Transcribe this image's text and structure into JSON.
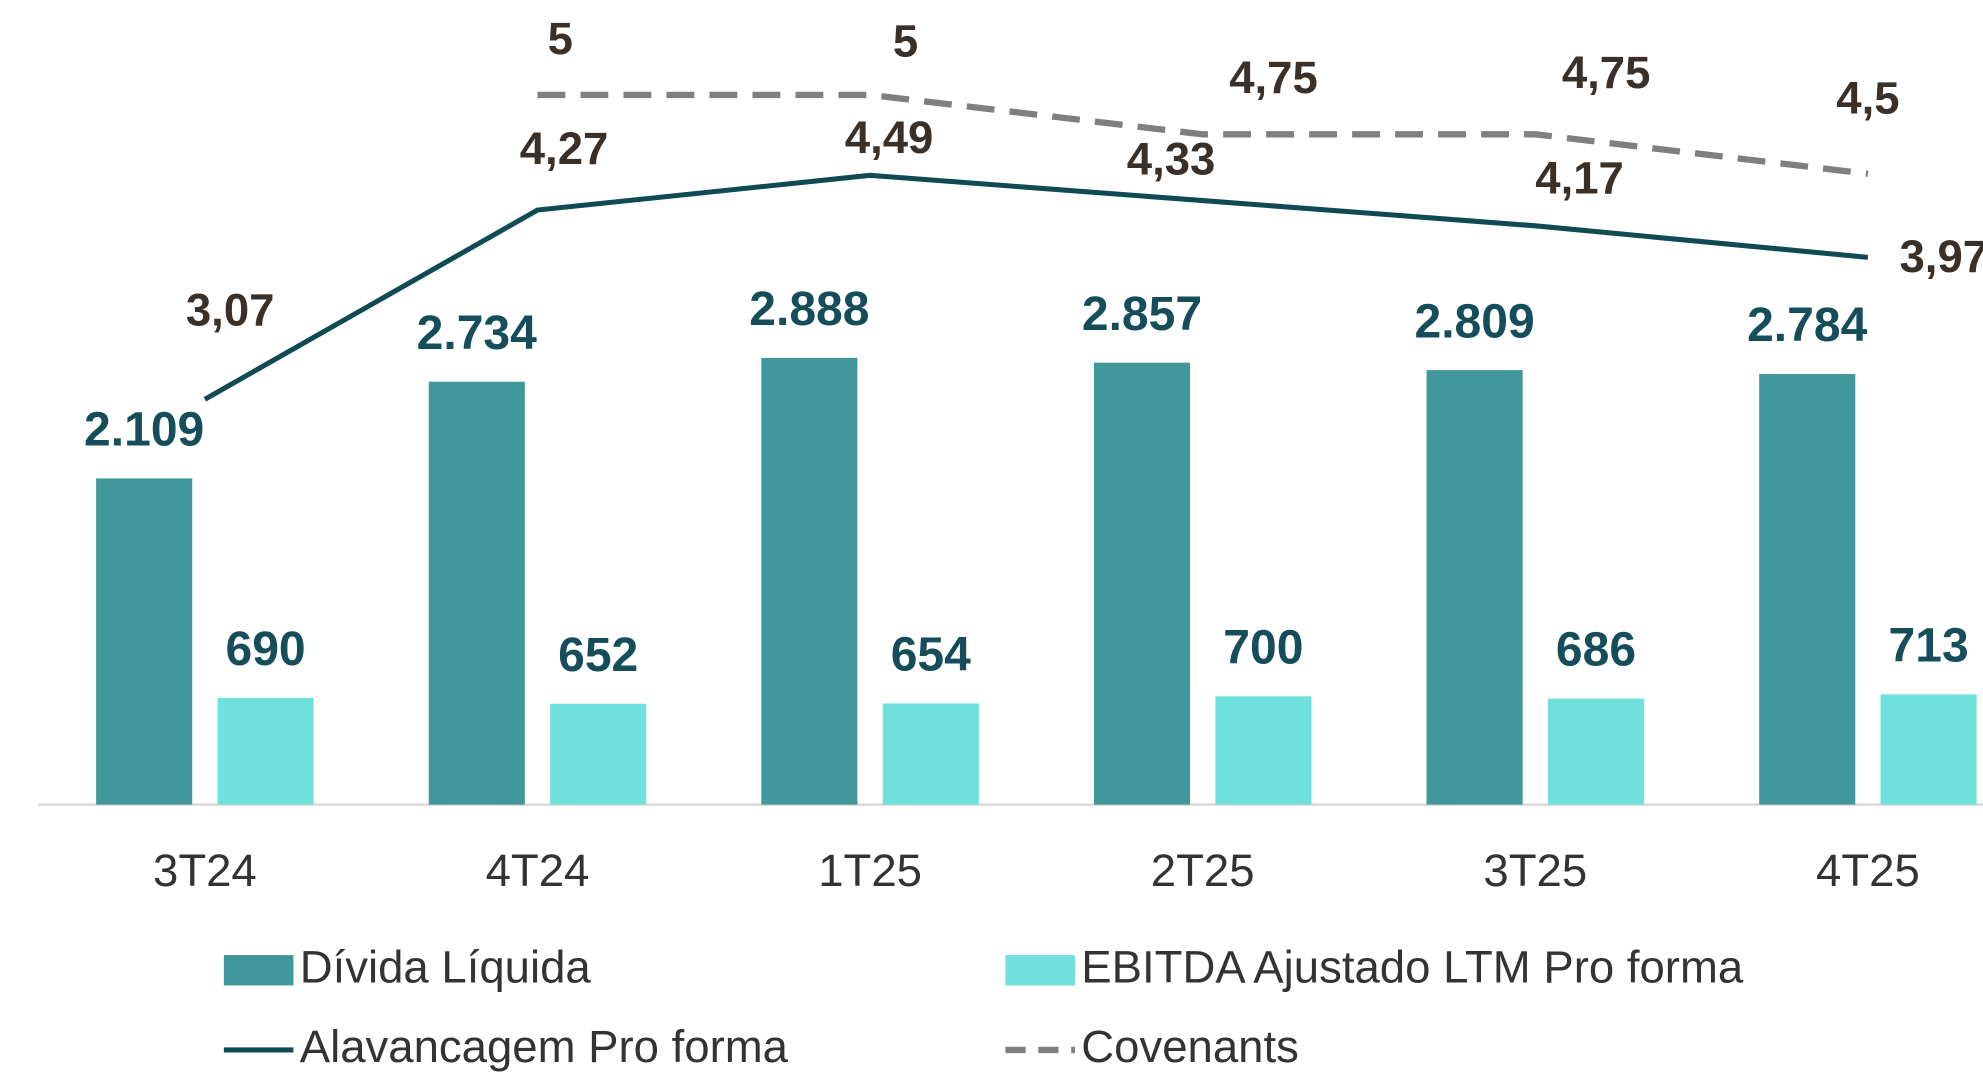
{
  "chart_data": {
    "type": "bar",
    "categories": [
      "3T24",
      "4T24",
      "1T25",
      "2T25",
      "3T25",
      "4T25"
    ],
    "ylim": [
      0,
      5200
    ],
    "y2lim": [
      0.5,
      5.6
    ],
    "legend": "bottom",
    "series": [
      {
        "name": "Dívida Líquida",
        "color": "#41979a",
        "type": "bar",
        "values": [
          2109,
          2734,
          2888,
          2857,
          2809,
          2784
        ],
        "value_labels": [
          "2.109",
          "2.734",
          "2.888",
          "2.857",
          "2.809",
          "2.784"
        ]
      },
      {
        "name": "EBITDA Ajustado LTM Pro forma",
        "color": "#70e0dc",
        "type": "bar",
        "values": [
          690,
          652,
          654,
          700,
          686,
          713
        ]
      },
      {
        "name": "Alavancagem Pro forma",
        "color": "#0f4a55",
        "type": "line",
        "axis": "y2",
        "values": [
          3.07,
          4.27,
          4.49,
          4.33,
          4.17,
          3.97
        ],
        "value_labels": [
          "3,07",
          "4,27",
          "4,49",
          "4,33",
          "4,17",
          "3,97"
        ]
      },
      {
        "name": "Covenants",
        "color": "#7f7f7f",
        "type": "line",
        "dashed": true,
        "axis": "y2",
        "values": [
          null,
          5,
          5,
          4.75,
          4.75,
          4.5
        ],
        "value_labels": [
          null,
          "5",
          "5",
          "4,75",
          "4,75",
          "4,5"
        ]
      }
    ]
  }
}
